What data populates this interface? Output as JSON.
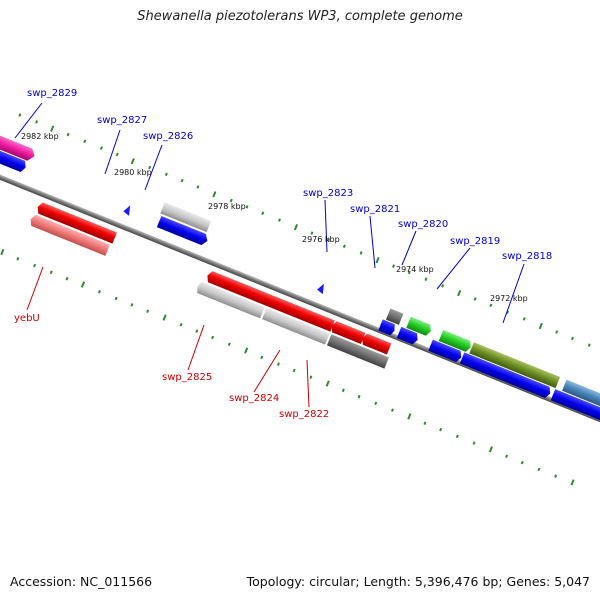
{
  "title": "Shewanella piezotolerans WP3, complete genome",
  "footer": {
    "accession": "Accession: NC_011566",
    "summary": "Topology: circular; Length: 5,396,476 bp; Genes: 5,047"
  },
  "colors": {
    "background": "#ffffff",
    "backbone": "#777777",
    "tick": "#2e8b2e",
    "forward_label": "#0000cc",
    "reverse_label": "#cc0000"
  },
  "kbp_labels": [
    "2982 kbp",
    "2980 kbp",
    "2978 kbp",
    "2976 kbp",
    "2974 kbp",
    "2972 kbp"
  ],
  "gene_labels": {
    "swp_2829": "swp_2829",
    "swp_2827": "swp_2827",
    "swp_2826": "swp_2826",
    "swp_2823": "swp_2823",
    "swp_2821": "swp_2821",
    "swp_2820": "swp_2820",
    "swp_2819": "swp_2819",
    "swp_2818": "swp_2818",
    "yebU": "yebU",
    "swp_2825": "swp_2825",
    "swp_2824": "swp_2824",
    "swp_2822": "swp_2822"
  }
}
